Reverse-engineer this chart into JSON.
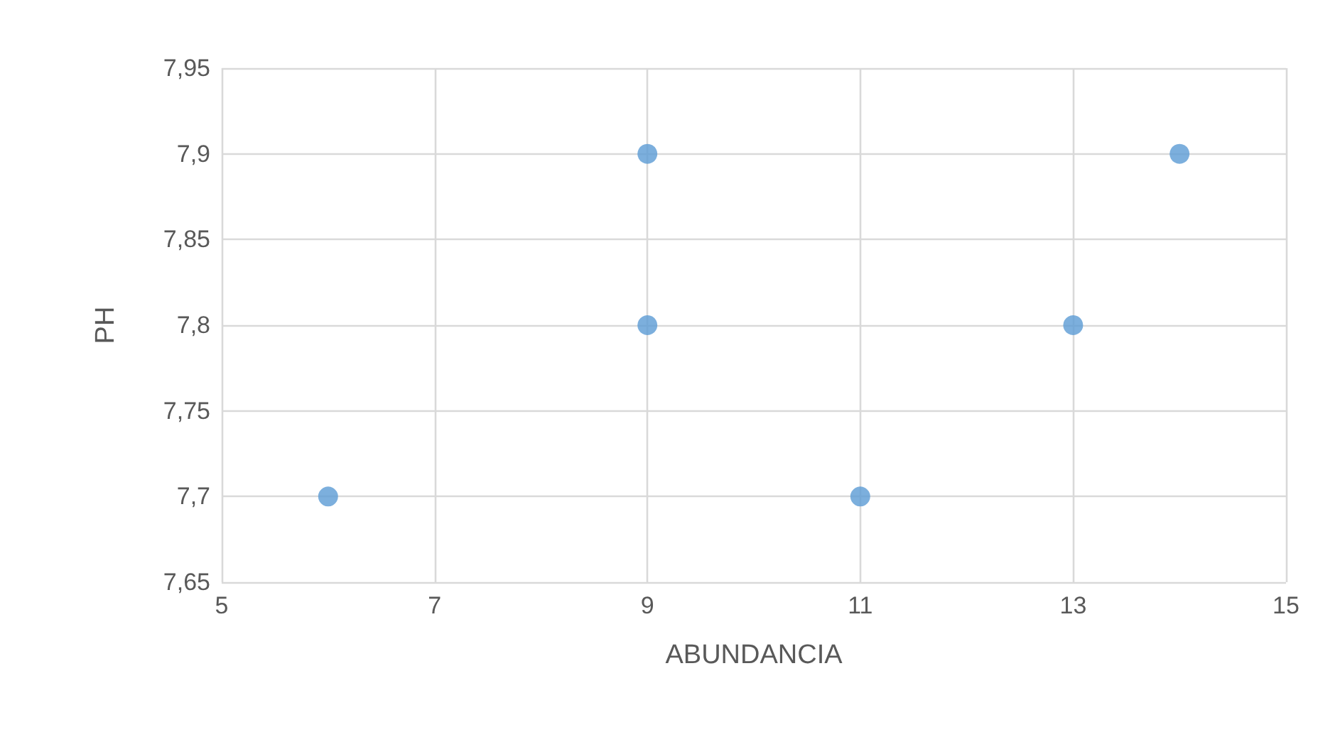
{
  "chart_data": {
    "type": "scatter",
    "xlabel": "ABUNDANCIA",
    "ylabel": "PH",
    "x": [
      6,
      9,
      9,
      11,
      13,
      14
    ],
    "series": [
      {
        "color": "#5b9bd5",
        "values": [
          7.7,
          7.9,
          7.8,
          7.7,
          7.8,
          7.9
        ]
      }
    ],
    "xlim": [
      5,
      15
    ],
    "xticks": [
      5,
      7,
      9,
      11,
      13,
      15
    ],
    "ylim": [
      7.65,
      7.95
    ],
    "yticks": [
      {
        "value": 7.65,
        "label": "7,65"
      },
      {
        "value": 7.7,
        "label": "7,7"
      },
      {
        "value": 7.75,
        "label": "7,75"
      },
      {
        "value": 7.8,
        "label": "7,8"
      },
      {
        "value": 7.85,
        "label": "7,85"
      },
      {
        "value": 7.9,
        "label": "7,9"
      },
      {
        "value": 7.95,
        "label": "7,95"
      }
    ],
    "grid": true,
    "marker": "circle"
  }
}
